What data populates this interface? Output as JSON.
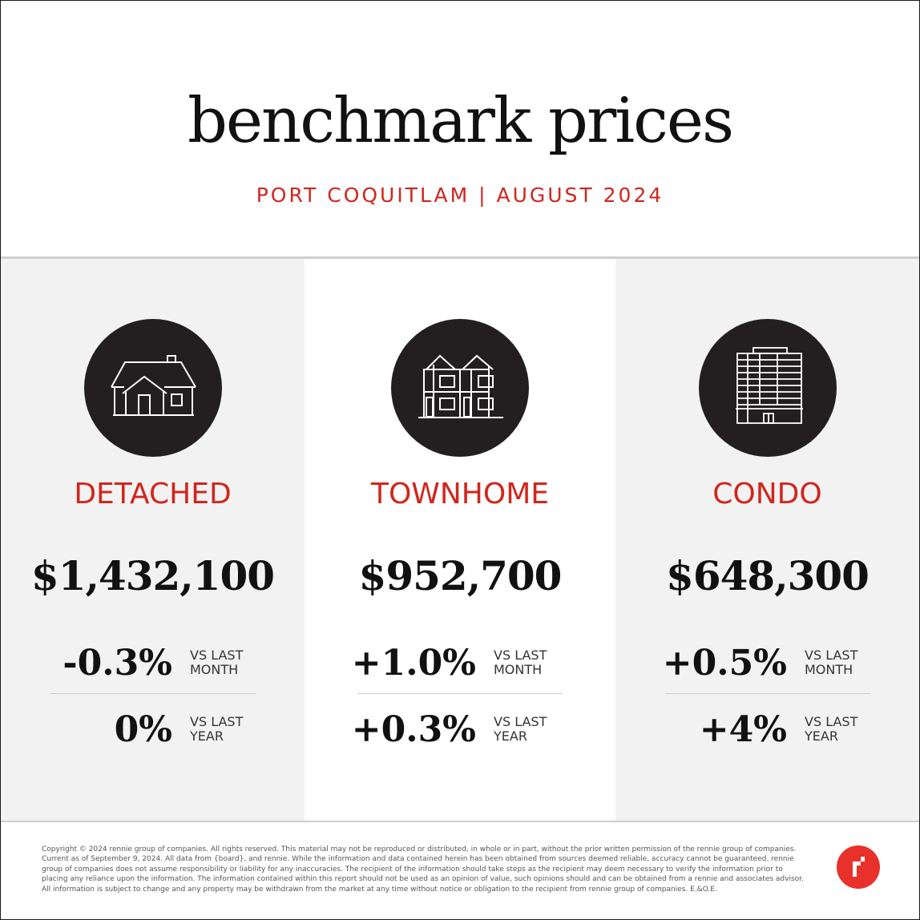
{
  "header": {
    "title": "benchmark prices",
    "subtitle": "PORT COQUITLAM | AUGUST 2024"
  },
  "columns": [
    {
      "icon": "detached-house-icon",
      "type": "DETACHED",
      "price": "$1,432,100",
      "month_change": "-0.3%",
      "month_label": "VS LAST MONTH",
      "year_change": "0%",
      "year_label": "VS LAST YEAR"
    },
    {
      "icon": "townhome-icon",
      "type": "TOWNHOME",
      "price": "$952,700",
      "month_change": "+1.0%",
      "month_label": "VS LAST MONTH",
      "year_change": "+0.3%",
      "year_label": "VS LAST YEAR"
    },
    {
      "icon": "condo-building-icon",
      "type": "CONDO",
      "price": "$648,300",
      "month_change": "+0.5%",
      "month_label": "VS LAST MONTH",
      "year_change": "+4%",
      "year_label": "VS LAST YEAR"
    }
  ],
  "footer": {
    "disclaimer": "Copyright © 2024 rennie group of companies. All rights reserved. This material may not be reproduced or distributed, in whole or in part, without the prior written permission of the rennie group of companies. Current as of September 9, 2024. All data from {board}, and rennie. While the information and data contained herein has been obtained from sources deemed reliable, accuracy cannot be guaranteed. rennie group of companies does not assume responsibility or liability for any inaccuracies. The recipient of the information should take steps as the recipient may deem necessary to verify the information prior to placing any reliance upon the information. The information contained within this report should not be used as an opinion of value, such opinions should and can be obtained from a rennie and associates advisor. All information is subject to change and any property may be withdrawn from the market at any time without notice or obligation to the recipient from rennie group of companies. E.&O.E.",
    "logo_icon": "rennie-logo-icon"
  },
  "colors": {
    "accent_red": "#d0261d",
    "circle_dark": "#231f20",
    "panel_grey": "#f2f2f2",
    "logo_red": "#e8312a"
  }
}
